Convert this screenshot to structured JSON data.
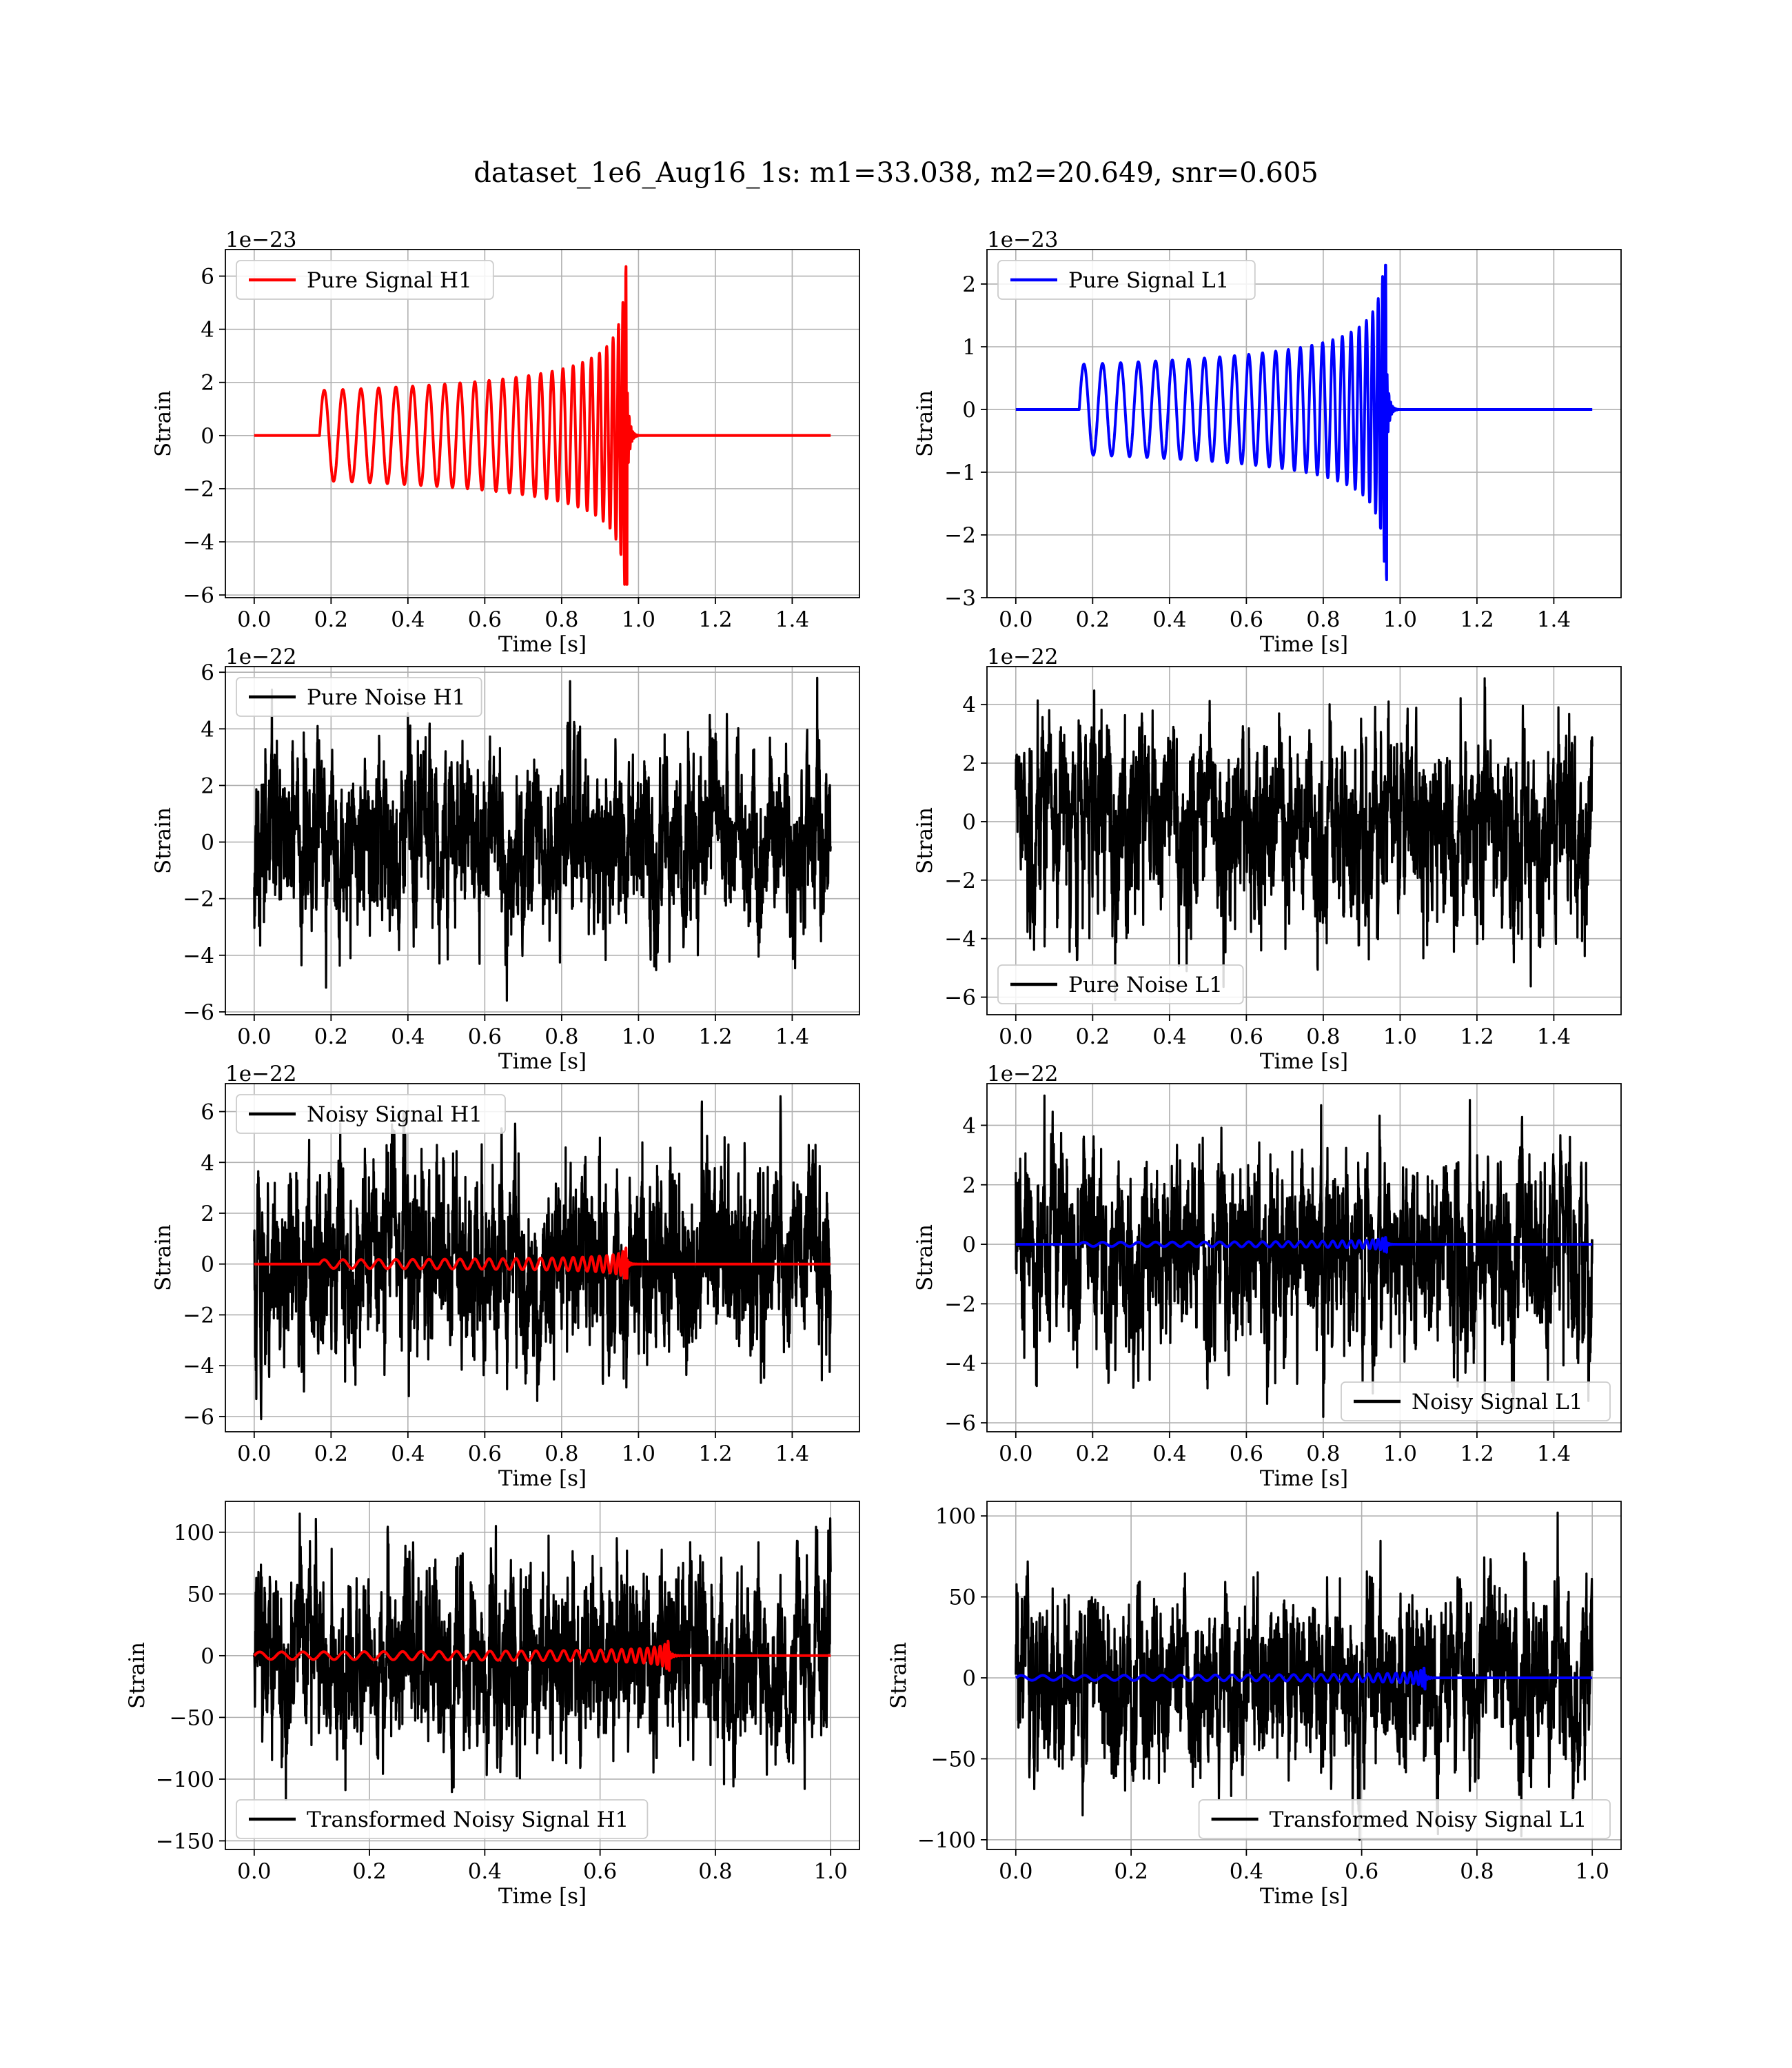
{
  "figure": {
    "title": "dataset_1e6_Aug16_1s: m1=33.038, m2=20.649, snr=0.605"
  },
  "chart_data": [
    {
      "id": "pure-signal-h1",
      "type": "line",
      "ylabel": "Strain",
      "xlabel": "Time [s]",
      "offset_label": "1e−23",
      "xlim": [
        -0.075,
        1.575
      ],
      "ylim": [
        -6.1,
        7.0
      ],
      "xticks": [
        0.0,
        0.2,
        0.4,
        0.6,
        0.8,
        1.0,
        1.2,
        1.4
      ],
      "xtick_labels": [
        "0.0",
        "0.2",
        "0.4",
        "0.6",
        "0.8",
        "1.0",
        "1.2",
        "1.4"
      ],
      "yticks": [
        -6,
        -4,
        -2,
        0,
        2,
        4,
        6
      ],
      "ytick_labels": [
        "−6",
        "−4",
        "−2",
        "0",
        "2",
        "4",
        "6"
      ],
      "grid": true,
      "legend_position": "upper-left",
      "series": [
        {
          "name": "Pure Signal H1",
          "color": "#ff0000",
          "kind": "chirp",
          "duration": 1.5,
          "t_start": 0.17,
          "t_merge": 0.97,
          "amp_start": 1.7,
          "amp_peak": 6.6,
          "amp_min": -5.6,
          "cycles": 26
        }
      ]
    },
    {
      "id": "pure-signal-l1",
      "type": "line",
      "ylabel": "Strain",
      "xlabel": "Time [s]",
      "offset_label": "1e−23",
      "xlim": [
        -0.075,
        1.575
      ],
      "ylim": [
        -3.0,
        2.55
      ],
      "xticks": [
        0.0,
        0.2,
        0.4,
        0.6,
        0.8,
        1.0,
        1.2,
        1.4
      ],
      "xtick_labels": [
        "0.0",
        "0.2",
        "0.4",
        "0.6",
        "0.8",
        "1.0",
        "1.2",
        "1.4"
      ],
      "yticks": [
        -3,
        -2,
        -1,
        0,
        1,
        2
      ],
      "ytick_labels": [
        "−3",
        "−2",
        "−1",
        "0",
        "1",
        "2"
      ],
      "grid": true,
      "legend_position": "upper-left",
      "series": [
        {
          "name": "Pure Signal L1",
          "color": "#0000ff",
          "kind": "chirp",
          "duration": 1.5,
          "t_start": 0.165,
          "t_merge": 0.965,
          "amp_start": 0.72,
          "amp_peak": 2.3,
          "amp_min": -2.75,
          "cycles": 26
        }
      ]
    },
    {
      "id": "pure-noise-h1",
      "type": "line",
      "ylabel": "Strain",
      "xlabel": "Time [s]",
      "offset_label": "1e−22",
      "xlim": [
        -0.075,
        1.575
      ],
      "ylim": [
        -6.1,
        6.2
      ],
      "xticks": [
        0.0,
        0.2,
        0.4,
        0.6,
        0.8,
        1.0,
        1.2,
        1.4
      ],
      "xtick_labels": [
        "0.0",
        "0.2",
        "0.4",
        "0.6",
        "0.8",
        "1.0",
        "1.2",
        "1.4"
      ],
      "yticks": [
        -6,
        -4,
        -2,
        0,
        2,
        4,
        6
      ],
      "ytick_labels": [
        "−6",
        "−4",
        "−2",
        "0",
        "2",
        "4",
        "6"
      ],
      "grid": true,
      "legend_position": "upper-left",
      "series": [
        {
          "name": "Pure Noise H1",
          "color": "#000000",
          "kind": "noise",
          "duration": 1.5,
          "peak": 5.8,
          "trough": -5.6,
          "seed": 11
        }
      ]
    },
    {
      "id": "pure-noise-l1",
      "type": "line",
      "ylabel": "Strain",
      "xlabel": "Time [s]",
      "offset_label": "1e−22",
      "xlim": [
        -0.075,
        1.575
      ],
      "ylim": [
        -6.6,
        5.3
      ],
      "xticks": [
        0.0,
        0.2,
        0.4,
        0.6,
        0.8,
        1.0,
        1.2,
        1.4
      ],
      "xtick_labels": [
        "0.0",
        "0.2",
        "0.4",
        "0.6",
        "0.8",
        "1.0",
        "1.2",
        "1.4"
      ],
      "yticks": [
        -6,
        -4,
        -2,
        0,
        2,
        4
      ],
      "ytick_labels": [
        "−6",
        "−4",
        "−2",
        "0",
        "2",
        "4"
      ],
      "grid": true,
      "legend_position": "lower-left",
      "series": [
        {
          "name": "Pure Noise L1",
          "color": "#000000",
          "kind": "noise",
          "duration": 1.5,
          "peak": 4.9,
          "trough": -6.1,
          "seed": 23
        }
      ]
    },
    {
      "id": "noisy-signal-h1",
      "type": "line",
      "ylabel": "Strain",
      "xlabel": "Time [s]",
      "offset_label": "1e−22",
      "xlim": [
        -0.075,
        1.575
      ],
      "ylim": [
        -6.6,
        7.1
      ],
      "xticks": [
        0.0,
        0.2,
        0.4,
        0.6,
        0.8,
        1.0,
        1.2,
        1.4
      ],
      "xtick_labels": [
        "0.0",
        "0.2",
        "0.4",
        "0.6",
        "0.8",
        "1.0",
        "1.2",
        "1.4"
      ],
      "yticks": [
        -6,
        -4,
        -2,
        0,
        2,
        4,
        6
      ],
      "ytick_labels": [
        "−6",
        "−4",
        "−2",
        "0",
        "2",
        "4",
        "6"
      ],
      "grid": true,
      "legend_position": "upper-left",
      "series": [
        {
          "name": "Noisy Signal H1",
          "color": "#000000",
          "kind": "noise",
          "duration": 1.5,
          "peak": 6.6,
          "trough": -6.1,
          "seed": 37
        },
        {
          "color": "#ff0000",
          "kind": "chirp",
          "duration": 1.5,
          "t_start": 0.17,
          "t_merge": 0.97,
          "amp_start": 0.17,
          "amp_peak": 0.66,
          "amp_min": -0.56,
          "cycles": 26
        }
      ]
    },
    {
      "id": "noisy-signal-l1",
      "type": "line",
      "ylabel": "Strain",
      "xlabel": "Time [s]",
      "offset_label": "1e−22",
      "xlim": [
        -0.075,
        1.575
      ],
      "ylim": [
        -6.3,
        5.4
      ],
      "xticks": [
        0.0,
        0.2,
        0.4,
        0.6,
        0.8,
        1.0,
        1.2,
        1.4
      ],
      "xtick_labels": [
        "0.0",
        "0.2",
        "0.4",
        "0.6",
        "0.8",
        "1.0",
        "1.2",
        "1.4"
      ],
      "yticks": [
        -6,
        -4,
        -2,
        0,
        2,
        4
      ],
      "ytick_labels": [
        "−6",
        "−4",
        "−2",
        "0",
        "2",
        "4"
      ],
      "grid": true,
      "legend_position": "lower-right",
      "series": [
        {
          "name": "Noisy Signal L1",
          "color": "#000000",
          "kind": "noise",
          "duration": 1.5,
          "peak": 5.0,
          "trough": -5.8,
          "seed": 53
        },
        {
          "color": "#0000ff",
          "kind": "chirp",
          "duration": 1.5,
          "t_start": 0.165,
          "t_merge": 0.965,
          "amp_start": 0.07,
          "amp_peak": 0.23,
          "amp_min": -0.27,
          "cycles": 26
        }
      ]
    },
    {
      "id": "transformed-noisy-signal-h1",
      "type": "line",
      "ylabel": "Strain",
      "xlabel": "Time [s]",
      "offset_label": "",
      "xlim": [
        -0.05,
        1.05
      ],
      "ylim": [
        -157,
        125
      ],
      "xticks": [
        0.0,
        0.2,
        0.4,
        0.6,
        0.8,
        1.0
      ],
      "xtick_labels": [
        "0.0",
        "0.2",
        "0.4",
        "0.6",
        "0.8",
        "1.0"
      ],
      "yticks": [
        -150,
        -100,
        -50,
        0,
        50,
        100
      ],
      "ytick_labels": [
        "−150",
        "−100",
        "−50",
        "0",
        "50",
        "100"
      ],
      "grid": true,
      "legend_position": "lower-left",
      "series": [
        {
          "name": "Transformed Noisy Signal H1",
          "color": "#000000",
          "kind": "noise",
          "duration": 1.0,
          "peak": 115,
          "trough": -117,
          "seed": 71
        },
        {
          "color": "#ff0000",
          "kind": "chirp",
          "duration": 1.0,
          "t_start": 0.0,
          "t_merge": 0.72,
          "amp_start": 3,
          "amp_peak": 12,
          "amp_min": -12,
          "cycles": 30
        }
      ]
    },
    {
      "id": "transformed-noisy-signal-l1",
      "type": "line",
      "ylabel": "Strain",
      "xlabel": "Time [s]",
      "offset_label": "",
      "xlim": [
        -0.05,
        1.05
      ],
      "ylim": [
        -106,
        109
      ],
      "xticks": [
        0.0,
        0.2,
        0.4,
        0.6,
        0.8,
        1.0
      ],
      "xtick_labels": [
        "0.0",
        "0.2",
        "0.4",
        "0.6",
        "0.8",
        "1.0"
      ],
      "yticks": [
        -100,
        -50,
        0,
        50,
        100
      ],
      "ytick_labels": [
        "−100",
        "−50",
        "0",
        "50",
        "100"
      ],
      "grid": true,
      "legend_position": "lower-right",
      "series": [
        {
          "name": "Transformed Noisy Signal L1",
          "color": "#000000",
          "kind": "noise",
          "duration": 1.0,
          "peak": 102,
          "trough": -100,
          "seed": 89
        },
        {
          "color": "#0000ff",
          "kind": "chirp",
          "duration": 1.0,
          "t_start": 0.0,
          "t_merge": 0.71,
          "amp_start": 1.5,
          "amp_peak": 6,
          "amp_min": -7,
          "cycles": 30
        }
      ]
    }
  ]
}
